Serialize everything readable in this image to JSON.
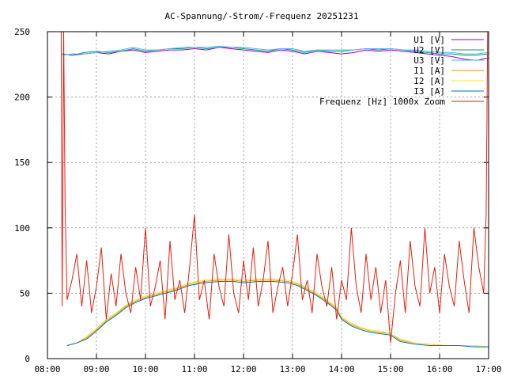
{
  "chart_data": {
    "type": "line",
    "title": "AC-Spannung/-Strom/-Frequenz 20251231",
    "xlabel": "",
    "ylabel": "",
    "xlim": [
      8.0,
      17.0
    ],
    "ylim": [
      0,
      250
    ],
    "x_ticks": [
      8,
      9,
      10,
      11,
      12,
      13,
      14,
      15,
      16,
      17
    ],
    "x_tick_labels": [
      "08:00",
      "09:00",
      "10:00",
      "11:00",
      "12:00",
      "13:00",
      "14:00",
      "15:00",
      "16:00",
      "17:00"
    ],
    "y_ticks": [
      0,
      50,
      100,
      150,
      200,
      250
    ],
    "y_tick_labels": [
      "0",
      "50",
      "100",
      "150",
      "200",
      "250"
    ],
    "grid": true,
    "legend_position": "top-right",
    "series": [
      {
        "name": "U1 [V]",
        "color": "#9400d3",
        "x": [
          8.3,
          8.5,
          8.75,
          9.0,
          9.25,
          9.5,
          9.75,
          10.0,
          10.25,
          10.5,
          10.75,
          11.0,
          11.25,
          11.5,
          11.75,
          12.0,
          12.25,
          12.5,
          12.75,
          13.0,
          13.25,
          13.5,
          13.75,
          14.0,
          14.25,
          14.5,
          14.75,
          15.0,
          15.25,
          15.5,
          15.75,
          16.0,
          16.25,
          16.5,
          16.75,
          17.0
        ],
        "values": [
          233,
          232,
          233,
          234,
          233,
          235,
          236,
          234,
          235,
          236,
          236,
          237,
          236,
          238,
          237,
          236,
          235,
          234,
          236,
          235,
          233,
          235,
          234,
          233,
          234,
          236,
          235,
          236,
          235,
          234,
          233,
          232,
          231,
          229,
          228,
          230
        ]
      },
      {
        "name": "U2 [V]",
        "color": "#009e73",
        "x": [
          8.3,
          8.5,
          8.75,
          9.0,
          9.25,
          9.5,
          9.75,
          10.0,
          10.25,
          10.5,
          10.75,
          11.0,
          11.25,
          11.5,
          11.75,
          12.0,
          12.25,
          12.5,
          12.75,
          13.0,
          13.25,
          13.5,
          13.75,
          14.0,
          14.25,
          14.5,
          14.75,
          15.0,
          15.25,
          15.5,
          15.75,
          16.0,
          16.25,
          16.5,
          16.75,
          17.0
        ],
        "values": [
          233,
          232,
          234,
          235,
          234,
          235,
          237,
          235,
          236,
          237,
          237,
          238,
          237,
          238,
          238,
          237,
          236,
          235,
          237,
          236,
          234,
          236,
          235,
          235,
          236,
          237,
          236,
          237,
          236,
          235,
          234,
          233,
          233,
          232,
          232,
          233
        ]
      },
      {
        "name": "U3 [V]",
        "color": "#56b4e9",
        "x": [
          8.3,
          8.5,
          8.75,
          9.0,
          9.25,
          9.5,
          9.75,
          10.0,
          10.25,
          10.5,
          10.75,
          11.0,
          11.25,
          11.5,
          11.75,
          12.0,
          12.25,
          12.5,
          12.75,
          13.0,
          13.25,
          13.5,
          13.75,
          14.0,
          14.25,
          14.5,
          14.75,
          15.0,
          15.25,
          15.5,
          15.75,
          16.0,
          16.25,
          16.5,
          16.75,
          17.0
        ],
        "values": [
          232,
          233,
          233,
          234,
          235,
          236,
          238,
          236,
          236,
          237,
          238,
          238,
          238,
          239,
          238,
          238,
          237,
          236,
          237,
          237,
          235,
          236,
          236,
          236,
          236,
          237,
          237,
          237,
          236,
          236,
          235,
          234,
          234,
          233,
          233,
          234
        ]
      },
      {
        "name": "I1 [A]",
        "color": "#e69f00",
        "x": [
          8.4,
          8.6,
          8.8,
          9.0,
          9.2,
          9.4,
          9.6,
          9.8,
          10.0,
          10.3,
          10.6,
          10.9,
          11.2,
          11.5,
          11.8,
          12.0,
          12.3,
          12.6,
          12.9,
          13.1,
          13.3,
          13.5,
          13.7,
          13.9,
          14.0,
          14.2,
          14.4,
          14.6,
          14.8,
          15.0,
          15.2,
          15.5,
          15.8,
          16.1,
          16.4,
          16.7,
          17.0
        ],
        "values": [
          10,
          12,
          16,
          22,
          29,
          34,
          40,
          44,
          47,
          50,
          53,
          57,
          59,
          60,
          60,
          59,
          60,
          60,
          59,
          57,
          53,
          49,
          44,
          38,
          31,
          26,
          23,
          21,
          20,
          19,
          14,
          12,
          11,
          10,
          10,
          10,
          9
        ]
      },
      {
        "name": "I2 [A]",
        "color": "#f0e442",
        "x": [
          8.4,
          8.6,
          8.8,
          9.0,
          9.2,
          9.4,
          9.6,
          9.8,
          10.0,
          10.3,
          10.6,
          10.9,
          11.2,
          11.5,
          11.8,
          12.0,
          12.3,
          12.6,
          12.9,
          13.1,
          13.3,
          13.5,
          13.7,
          13.9,
          14.0,
          14.2,
          14.4,
          14.6,
          14.8,
          15.0,
          15.2,
          15.5,
          15.8,
          16.1,
          16.4,
          16.7,
          17.0
        ],
        "values": [
          10,
          12,
          17,
          23,
          30,
          35,
          41,
          45,
          48,
          51,
          54,
          58,
          60,
          61,
          61,
          60,
          61,
          61,
          60,
          58,
          54,
          50,
          45,
          39,
          32,
          27,
          24,
          22,
          21,
          19,
          15,
          12,
          11,
          10,
          10,
          10,
          9
        ]
      },
      {
        "name": "I3 [A]",
        "color": "#0072b2",
        "x": [
          8.4,
          8.6,
          8.8,
          9.0,
          9.2,
          9.4,
          9.6,
          9.8,
          10.0,
          10.3,
          10.6,
          10.9,
          11.2,
          11.5,
          11.8,
          12.0,
          12.3,
          12.6,
          12.9,
          13.1,
          13.3,
          13.5,
          13.7,
          13.9,
          14.0,
          14.2,
          14.4,
          14.6,
          14.8,
          15.0,
          15.2,
          15.5,
          15.8,
          16.1,
          16.4,
          16.7,
          17.0
        ],
        "values": [
          10,
          12,
          15,
          21,
          28,
          33,
          39,
          43,
          46,
          49,
          52,
          56,
          58,
          59,
          59,
          58,
          59,
          59,
          58,
          56,
          52,
          48,
          43,
          37,
          30,
          25,
          22,
          20,
          19,
          18,
          13,
          11,
          10,
          10,
          10,
          9,
          9
        ]
      },
      {
        "name": "Frequenz [Hz] 1000x Zoom",
        "color": "#e51e10",
        "x": [
          8.28,
          8.3,
          8.33,
          8.36,
          8.4,
          8.5,
          8.6,
          8.7,
          8.8,
          8.9,
          9.0,
          9.1,
          9.2,
          9.3,
          9.4,
          9.5,
          9.6,
          9.7,
          9.8,
          9.9,
          10.0,
          10.1,
          10.2,
          10.3,
          10.4,
          10.5,
          10.6,
          10.7,
          10.8,
          10.9,
          11.0,
          11.1,
          11.2,
          11.3,
          11.4,
          11.5,
          11.6,
          11.7,
          11.8,
          11.9,
          12.0,
          12.1,
          12.2,
          12.3,
          12.4,
          12.5,
          12.6,
          12.7,
          12.8,
          12.9,
          13.0,
          13.1,
          13.2,
          13.3,
          13.4,
          13.5,
          13.6,
          13.7,
          13.8,
          13.9,
          14.0,
          14.1,
          14.2,
          14.3,
          14.4,
          14.5,
          14.6,
          14.7,
          14.8,
          14.9,
          15.0,
          15.1,
          15.2,
          15.3,
          15.4,
          15.5,
          15.6,
          15.7,
          15.8,
          15.9,
          16.0,
          16.1,
          16.2,
          16.3,
          16.4,
          16.5,
          16.6,
          16.7,
          16.8,
          16.9,
          16.95,
          16.98
        ],
        "values": [
          250,
          40,
          250,
          120,
          45,
          60,
          80,
          40,
          75,
          35,
          55,
          85,
          30,
          65,
          40,
          80,
          50,
          35,
          70,
          45,
          100,
          40,
          55,
          75,
          30,
          90,
          45,
          60,
          35,
          70,
          110,
          45,
          60,
          30,
          80,
          55,
          40,
          95,
          50,
          35,
          75,
          45,
          85,
          40,
          60,
          90,
          35,
          55,
          70,
          40,
          65,
          95,
          45,
          60,
          35,
          80,
          55,
          40,
          70,
          30,
          60,
          45,
          100,
          55,
          35,
          80,
          45,
          70,
          35,
          60,
          12,
          50,
          75,
          35,
          90,
          55,
          40,
          100,
          50,
          70,
          35,
          80,
          55,
          40,
          90,
          60,
          35,
          100,
          70,
          50,
          110,
          250
        ]
      }
    ]
  }
}
